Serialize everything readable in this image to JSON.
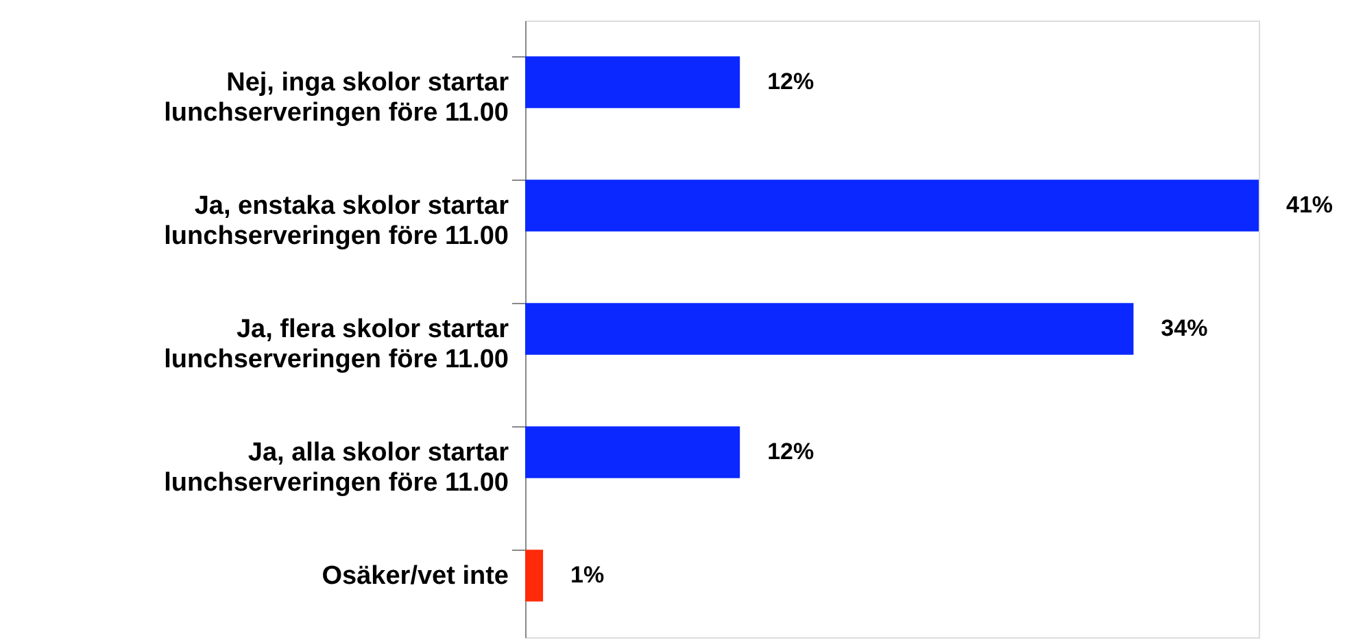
{
  "chart_data": {
    "type": "bar",
    "orientation": "horizontal",
    "value_labels": [
      "12%",
      "41%",
      "34%",
      "12%",
      "1%"
    ],
    "categories": [
      "Nej, inga skolor startar lunchserveringen före 11.00",
      "Ja, enstaka skolor startar lunchserveringen före 11.00",
      "Ja, flera skolor startar lunchserveringen före 11.00",
      "Ja, alla skolor startar lunchserveringen före 11.00",
      "Osäker/vet inte"
    ],
    "values": [
      12,
      41,
      34,
      12,
      1
    ],
    "colors": [
      "#0a28ff",
      "#0a28ff",
      "#0a28ff",
      "#0a28ff",
      "#ff2a0a"
    ],
    "tick_labels": "y",
    "grid": false
  }
}
